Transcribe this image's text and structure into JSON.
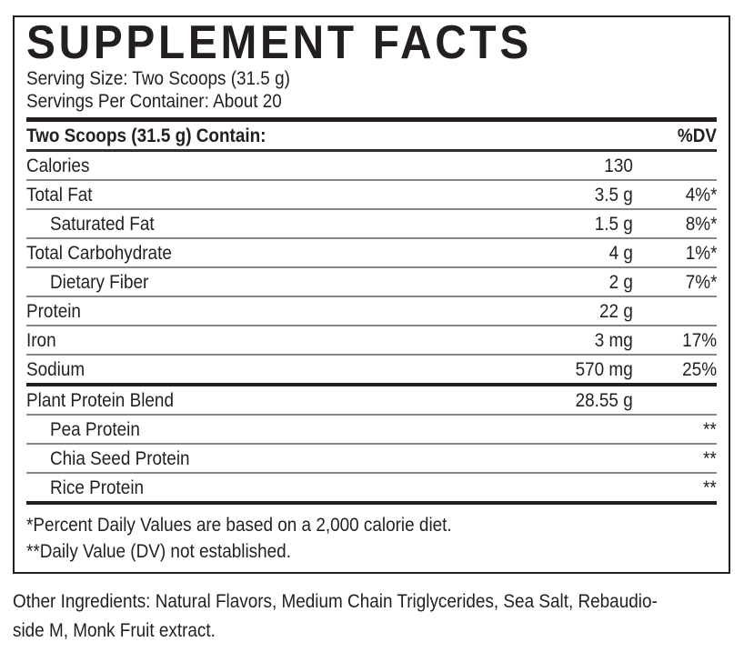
{
  "panel": {
    "title": "SUPPLEMENT FACTS",
    "serving_size": "Serving Size: Two Scoops (31.5 g)",
    "servings_per_container": "Servings Per Container: About 20"
  },
  "table": {
    "header": {
      "label": "Two Scoops (31.5 g) Contain:",
      "dv": "%DV"
    },
    "rows": [
      {
        "name": "Calories",
        "amount": "130",
        "dv": ""
      },
      {
        "name": "Total Fat",
        "amount": "3.5 g",
        "dv": "4%*"
      },
      {
        "name": "Saturated Fat",
        "amount": "1.5 g",
        "dv": "8%*"
      },
      {
        "name": "Total Carbohydrate",
        "amount": "4 g",
        "dv": "1%*"
      },
      {
        "name": "Dietary Fiber",
        "amount": "2 g",
        "dv": "7%*"
      },
      {
        "name": "Protein",
        "amount": "22 g",
        "dv": ""
      },
      {
        "name": "Iron",
        "amount": "3 mg",
        "dv": "17%"
      },
      {
        "name": "Sodium",
        "amount": "570 mg",
        "dv": "25%"
      },
      {
        "name": "Plant Protein Blend",
        "amount": "28.55 g",
        "dv": ""
      },
      {
        "name": "Pea Protein",
        "amount": "",
        "dv": "**"
      },
      {
        "name": "Chia Seed Protein",
        "amount": "",
        "dv": "**"
      },
      {
        "name": "Rice Protein",
        "amount": "",
        "dv": "**"
      }
    ],
    "footnotes": [
      "*Percent Daily Values are based on a 2,000 calorie diet.",
      "**Daily Value (DV) not established."
    ]
  },
  "other_ingredients": {
    "lines": [
      "Other Ingredients: Natural Flavors, Medium Chain Triglycerides, Sea Salt, Rebaudio-",
      "side M, Monk Fruit extract."
    ]
  },
  "colors": {
    "text": "#231f20",
    "divider_thin": "#868686",
    "divider_thick": "#231f20",
    "background": "#ffffff"
  }
}
